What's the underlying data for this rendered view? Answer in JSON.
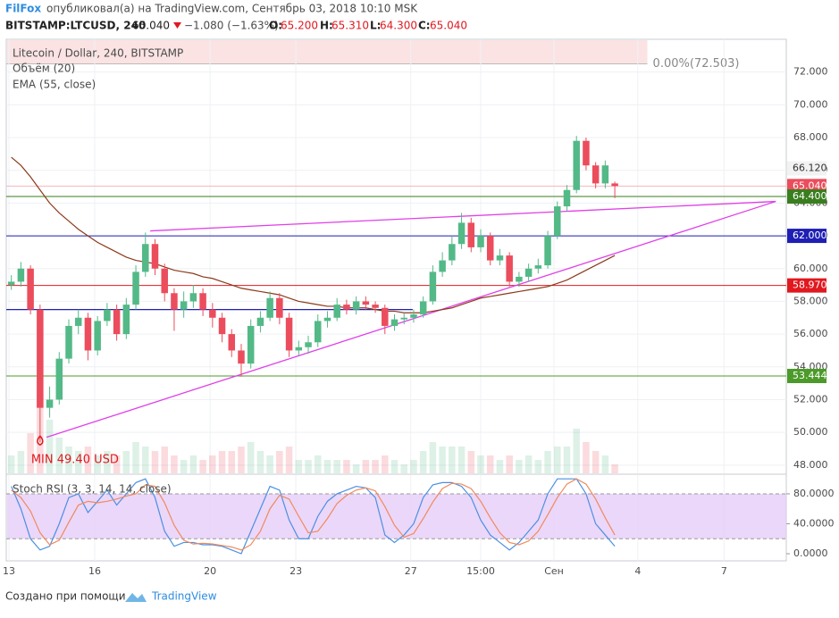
{
  "header": {
    "author": "FilFox",
    "published": "опубликовал(а) на TradingView.com, Сентябрь 03, 2018 10:10 MSK",
    "symbol": "BITSTAMP:LTCUSD, 240",
    "last": "65.040",
    "change": "−1.080 (−1.63%)",
    "o_label": "O:",
    "o": "65.200",
    "h_label": "H:",
    "h": "65.310",
    "l_label": "L:",
    "l": "64.300",
    "c_label": "C:",
    "c": "65.040"
  },
  "chart_data": [
    {
      "type": "candlestick",
      "title": "Litecoin / Dollar, 240, BITSTAMP",
      "up_color": "#53b987",
      "down_color": "#eb4d5c",
      "grid": true,
      "xlim": [
        -0.53,
        80.9
      ],
      "xticks": [
        {
          "value": -0.25,
          "label": "13"
        },
        {
          "value": 8.7,
          "label": "16"
        },
        {
          "value": 20.75,
          "label": "20"
        },
        {
          "value": 29.7,
          "label": "23"
        },
        {
          "value": 41.7,
          "label": "27"
        },
        {
          "value": 49,
          "label": "15:00"
        },
        {
          "value": 56.65,
          "label": "Сен"
        },
        {
          "value": 65.4,
          "label": "4"
        },
        {
          "value": 74.4,
          "label": "7"
        }
      ],
      "ylim": [
        47.5,
        74
      ],
      "yticks": [
        {
          "value": 48,
          "label": "48.000"
        },
        {
          "value": 50,
          "label": "50.000"
        },
        {
          "value": 52,
          "label": "52.000"
        },
        {
          "value": 54,
          "label": "54.000"
        },
        {
          "value": 56,
          "label": "56.000"
        },
        {
          "value": 58,
          "label": "58.000"
        },
        {
          "value": 60,
          "label": "60.000"
        },
        {
          "value": 62,
          "label": "62.000"
        },
        {
          "value": 64,
          "label": "64.000"
        },
        {
          "value": 66,
          "label": "66.000"
        },
        {
          "value": 68,
          "label": "68.000"
        },
        {
          "value": 70,
          "label": "70.000"
        },
        {
          "value": 72,
          "label": "72.000"
        }
      ],
      "candles": [
        [
          59.0,
          59.6,
          58.7,
          59.2
        ],
        [
          59.2,
          60.4,
          58.9,
          60.0
        ],
        [
          60.0,
          60.2,
          57.2,
          57.5
        ],
        [
          57.5,
          57.8,
          49.4,
          51.5
        ],
        [
          51.5,
          52.8,
          50.9,
          52.0
        ],
        [
          52.0,
          54.9,
          51.7,
          54.5
        ],
        [
          54.5,
          56.9,
          54.2,
          56.5
        ],
        [
          56.5,
          57.5,
          56.0,
          57.0
        ],
        [
          57.0,
          57.3,
          54.4,
          55.0
        ],
        [
          55.0,
          57.1,
          54.7,
          56.8
        ],
        [
          56.8,
          57.9,
          56.5,
          57.5
        ],
        [
          57.5,
          57.8,
          55.6,
          56.0
        ],
        [
          56.0,
          58.2,
          55.7,
          57.8
        ],
        [
          57.8,
          60.2,
          57.5,
          59.8
        ],
        [
          59.8,
          62.2,
          59.5,
          61.5
        ],
        [
          61.5,
          61.8,
          59.6,
          60.0
        ],
        [
          60.0,
          60.3,
          58.0,
          58.5
        ],
        [
          58.5,
          58.8,
          56.2,
          57.5
        ],
        [
          57.5,
          58.6,
          57.0,
          58.0
        ],
        [
          58.0,
          59.0,
          57.6,
          58.5
        ],
        [
          58.5,
          58.8,
          57.1,
          57.5
        ],
        [
          57.5,
          57.9,
          56.4,
          57.0
        ],
        [
          57.0,
          57.3,
          55.5,
          56.0
        ],
        [
          56.0,
          56.3,
          54.6,
          55.0
        ],
        [
          55.0,
          55.4,
          53.4,
          54.2
        ],
        [
          54.2,
          56.9,
          53.9,
          56.5
        ],
        [
          56.5,
          57.4,
          56.1,
          57.0
        ],
        [
          57.0,
          58.6,
          56.8,
          58.2
        ],
        [
          58.2,
          58.5,
          56.6,
          57.0
        ],
        [
          57.0,
          57.3,
          54.6,
          55.0
        ],
        [
          55.0,
          55.6,
          54.7,
          55.2
        ],
        [
          55.2,
          55.9,
          54.8,
          55.5
        ],
        [
          55.5,
          57.2,
          55.2,
          56.8
        ],
        [
          56.8,
          57.4,
          56.4,
          57.0
        ],
        [
          57.0,
          58.2,
          56.8,
          57.8
        ],
        [
          57.8,
          58.1,
          57.2,
          57.5
        ],
        [
          57.5,
          58.3,
          57.2,
          58.0
        ],
        [
          58.0,
          58.3,
          57.5,
          57.8
        ],
        [
          57.8,
          58.0,
          57.3,
          57.6
        ],
        [
          57.6,
          57.8,
          56.0,
          56.5
        ],
        [
          56.5,
          57.2,
          56.2,
          56.9
        ],
        [
          56.9,
          57.3,
          56.6,
          57.0
        ],
        [
          57.0,
          57.5,
          56.7,
          57.2
        ],
        [
          57.2,
          58.3,
          57.0,
          58.0
        ],
        [
          58.0,
          60.2,
          57.8,
          59.8
        ],
        [
          59.8,
          61.0,
          59.5,
          60.5
        ],
        [
          60.5,
          62.0,
          60.2,
          61.5
        ],
        [
          61.5,
          63.4,
          61.2,
          62.8
        ],
        [
          62.8,
          63.1,
          61.0,
          61.3
        ],
        [
          61.3,
          62.4,
          61.0,
          62.0
        ],
        [
          62.0,
          62.2,
          60.2,
          60.5
        ],
        [
          60.5,
          61.2,
          60.2,
          60.8
        ],
        [
          60.8,
          61.0,
          58.9,
          59.2
        ],
        [
          59.2,
          59.8,
          58.9,
          59.5
        ],
        [
          59.5,
          60.3,
          59.2,
          60.0
        ],
        [
          60.0,
          60.6,
          59.7,
          60.2
        ],
        [
          60.2,
          62.3,
          60.0,
          62.0
        ],
        [
          62.0,
          64.1,
          61.8,
          63.8
        ],
        [
          63.8,
          65.1,
          63.5,
          64.8
        ],
        [
          64.8,
          68.1,
          64.6,
          67.8
        ],
        [
          67.8,
          68.0,
          66.0,
          66.3
        ],
        [
          66.3,
          66.5,
          64.9,
          65.2
        ],
        [
          65.2,
          66.6,
          64.9,
          66.3
        ],
        [
          65.2,
          65.31,
          64.3,
          65.04
        ]
      ],
      "volume": {
        "name": "Объём (20)",
        "ylim": [
          0,
          100
        ],
        "values": [
          20,
          25,
          45,
          90,
          60,
          40,
          30,
          25,
          30,
          20,
          25,
          20,
          25,
          35,
          30,
          25,
          30,
          20,
          15,
          20,
          15,
          20,
          25,
          25,
          30,
          35,
          25,
          20,
          25,
          30,
          15,
          15,
          20,
          15,
          15,
          15,
          10,
          15,
          15,
          20,
          15,
          10,
          15,
          25,
          35,
          30,
          30,
          30,
          25,
          20,
          20,
          15,
          20,
          15,
          20,
          15,
          25,
          30,
          30,
          50,
          35,
          25,
          20,
          10
        ]
      },
      "ema": {
        "name": "EMA (55, close)",
        "color": "#8b3a1a",
        "values": [
          66.8,
          66.3,
          65.6,
          64.8,
          64.0,
          63.4,
          62.9,
          62.4,
          62.0,
          61.6,
          61.3,
          61.0,
          60.7,
          60.5,
          60.4,
          60.3,
          60.1,
          59.9,
          59.8,
          59.7,
          59.5,
          59.4,
          59.2,
          59.0,
          58.8,
          58.7,
          58.6,
          58.5,
          58.4,
          58.2,
          58.0,
          57.9,
          57.8,
          57.7,
          57.7,
          57.6,
          57.6,
          57.6,
          57.5,
          57.4,
          57.4,
          57.3,
          57.3,
          57.3,
          57.4,
          57.5,
          57.6,
          57.8,
          58.0,
          58.2,
          58.3,
          58.4,
          58.5,
          58.6,
          58.7,
          58.8,
          58.9,
          59.1,
          59.3,
          59.6,
          59.9,
          60.2,
          60.5,
          60.8
        ]
      },
      "levels": [
        {
          "value": 66.12,
          "label": "66.120",
          "color": "#f2f2f2",
          "text_color": "#333",
          "line": false
        },
        {
          "value": 65.04,
          "label": "65.040",
          "color": "#eb4d5c",
          "text_color": "#fff",
          "line": true,
          "line_color": "#f4b6bc"
        },
        {
          "value": 64.4,
          "label": "64.400",
          "color": "#3a7d1e",
          "text_color": "#fff",
          "line": true,
          "line_color": "#3a7d1e"
        },
        {
          "value": 62,
          "label": "62.000",
          "color": "#1f1fb4",
          "text_color": "#fff",
          "line": true,
          "line_color": "#1f1fb4"
        },
        {
          "value": 58.97,
          "label": "58.970",
          "color": "#e0191f",
          "text_color": "#fff",
          "line": true,
          "line_color": "#e0191f"
        },
        {
          "value": 53.444,
          "label": "53.444",
          "color": "#4c9a2a",
          "text_color": "#fff",
          "line": true,
          "line_color": "#4c9a2a"
        }
      ],
      "segments": [
        {
          "color": "#1f1fb4",
          "points": [
            [
              -0.53,
              57.5
            ],
            [
              41.9,
              57.5
            ]
          ]
        }
      ],
      "trendlines": [
        {
          "color": "#e040e8",
          "points": [
            [
              14.5,
              62.3
            ],
            [
              79.8,
              64.1
            ]
          ]
        },
        {
          "color": "#e040e8",
          "points": [
            [
              3.67,
              49.7
            ],
            [
              79.8,
              64.1
            ]
          ]
        }
      ],
      "min_label": {
        "text": "MIN 49.40 USD",
        "x": 3,
        "value": 49.4
      },
      "fib": {
        "value": 72.503,
        "label": "0.00%(72.503)",
        "x_end": 66.4
      }
    },
    {
      "type": "stoch",
      "title": "Stoch RSI (3, 3, 14, 14, close)",
      "ylim": [
        -9.5,
        105
      ],
      "yticks": [
        {
          "value": 0,
          "label": "0.0000"
        },
        {
          "value": 40,
          "label": "40.0000"
        },
        {
          "value": 80,
          "label": "80.0000"
        }
      ],
      "band": [
        20,
        80
      ],
      "band_color": "#e6cdf7",
      "series": [
        {
          "color": "#4a90e2",
          "values": [
            90,
            60,
            20,
            5,
            10,
            40,
            75,
            80,
            55,
            70,
            85,
            65,
            80,
            95,
            100,
            75,
            30,
            10,
            15,
            15,
            12,
            12,
            10,
            5,
            0,
            30,
            60,
            90,
            85,
            45,
            20,
            20,
            50,
            70,
            80,
            85,
            90,
            88,
            75,
            25,
            15,
            25,
            40,
            75,
            92,
            95,
            95,
            90,
            75,
            45,
            25,
            15,
            5,
            15,
            30,
            45,
            80,
            100,
            100,
            100,
            80,
            40,
            25,
            10
          ]
        },
        {
          "color": "#f08a5d",
          "values": [
            85,
            75,
            57,
            28,
            12,
            18,
            42,
            65,
            70,
            68,
            70,
            73,
            77,
            80,
            92,
            90,
            68,
            38,
            18,
            13,
            14,
            13,
            11,
            9,
            5,
            12,
            30,
            60,
            78,
            73,
            50,
            28,
            30,
            47,
            67,
            78,
            85,
            88,
            84,
            63,
            38,
            22,
            27,
            47,
            69,
            87,
            94,
            93,
            87,
            70,
            48,
            28,
            15,
            12,
            17,
            30,
            52,
            75,
            93,
            100,
            93,
            73,
            48,
            25
          ]
        }
      ]
    }
  ],
  "footer": {
    "created": "Создано при помощи",
    "brand": "TradingView"
  }
}
